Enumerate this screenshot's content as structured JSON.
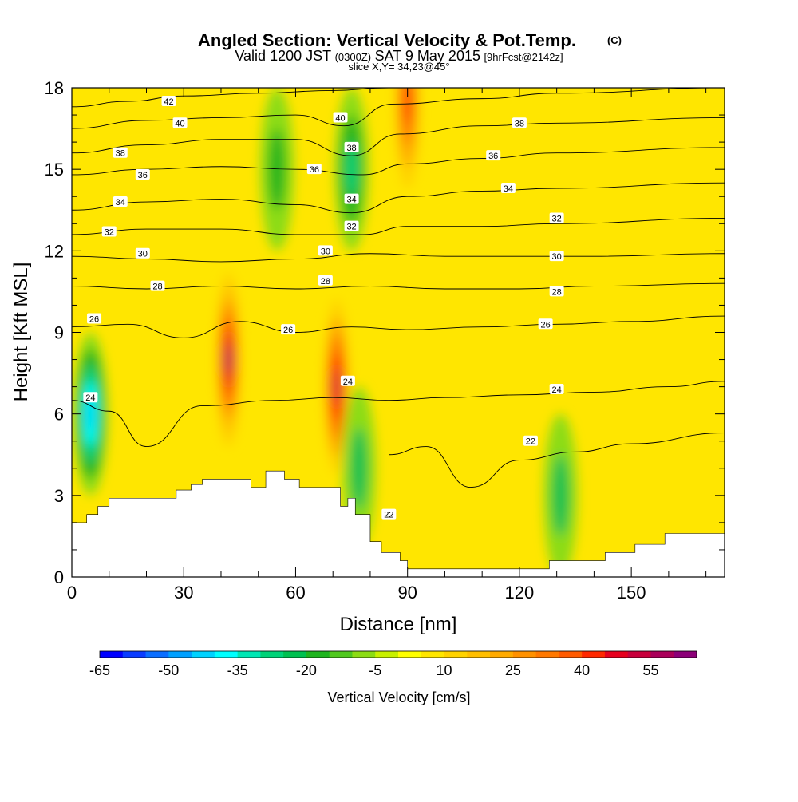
{
  "header": {
    "title": "Angled Section: Vertical Velocity & Pot.Temp.",
    "title_mark": "(C)",
    "valid_prefix": "Valid 1200 JST",
    "valid_zone": "(0300Z)",
    "valid_date": "SAT 9 May 2015",
    "valid_fcst": "[9hrFcst@2142z]",
    "slice": "slice X,Y= 34,23@45°"
  },
  "chart_data": {
    "type": "heatmap",
    "title": "Angled Section: Vertical Velocity & Pot.Temp.",
    "xlabel": "Distance [nm]",
    "ylabel": "Height [Kft MSL]",
    "xlim": [
      0,
      175
    ],
    "ylim": [
      0,
      18
    ],
    "x_ticks": [
      0,
      30,
      60,
      90,
      120,
      150
    ],
    "x_tick_labels": [
      "0",
      "30",
      "60",
      "90",
      "120",
      "150"
    ],
    "y_ticks": [
      0,
      3,
      6,
      9,
      12,
      15,
      18
    ],
    "y_tick_labels": [
      "0",
      "3",
      "6",
      "9",
      "12",
      "15",
      "18"
    ],
    "colorbar": {
      "title": "Vertical Velocity [cm/s]",
      "min": -65,
      "max": 60,
      "step": 5,
      "tick_values": [
        -65,
        -50,
        -35,
        -20,
        -5,
        10,
        25,
        40,
        55
      ],
      "tick_labels": [
        "-65",
        "-50",
        "-35",
        "-20",
        "-5",
        "10",
        "25",
        "40",
        "55"
      ],
      "colors": [
        "#0000ff",
        "#0a3cff",
        "#0a6eff",
        "#00a0ff",
        "#00d2ff",
        "#00ffff",
        "#00e6b4",
        "#00d278",
        "#00c050",
        "#1eb41e",
        "#50c81e",
        "#8cdc14",
        "#c8f000",
        "#ffff00",
        "#ffe600",
        "#ffd200",
        "#ffbe00",
        "#ffaa00",
        "#ff9100",
        "#ff7800",
        "#ff5a00",
        "#ff2800",
        "#e6001e",
        "#c8003c",
        "#aa005a",
        "#8c0078"
      ]
    },
    "field_features": [
      {
        "kind": "updraft",
        "x": 42,
        "y": 8,
        "peak_cm_s": 58
      },
      {
        "kind": "updraft",
        "x": 71,
        "y": 7,
        "peak_cm_s": 52
      },
      {
        "kind": "updraft",
        "x": 90,
        "y": 17.5,
        "peak_cm_s": 40
      },
      {
        "kind": "downdraft",
        "x": 5,
        "y": 6,
        "peak_cm_s": -45
      },
      {
        "kind": "downdraft",
        "x": 75,
        "y": 15,
        "peak_cm_s": -30
      },
      {
        "kind": "downdraft",
        "x": 55,
        "y": 15,
        "peak_cm_s": -20
      },
      {
        "kind": "downdraft",
        "x": 77,
        "y": 4,
        "peak_cm_s": -22
      },
      {
        "kind": "downdraft",
        "x": 131,
        "y": 3,
        "peak_cm_s": -22
      }
    ],
    "theta_contours": [
      {
        "value": 22,
        "label": "22",
        "points": [
          [
            85,
            4.5
          ],
          [
            95,
            4.8
          ],
          [
            107,
            3.3
          ],
          [
            120,
            4.3
          ],
          [
            135,
            4.6
          ],
          [
            150,
            4.9
          ],
          [
            175,
            5.3
          ]
        ]
      },
      {
        "value": 24,
        "label": "24",
        "points": [
          [
            0,
            6.5
          ],
          [
            10,
            6.1
          ],
          [
            20,
            4.8
          ],
          [
            35,
            6.3
          ],
          [
            55,
            6.5
          ],
          [
            70,
            6.6
          ],
          [
            85,
            6.5
          ],
          [
            100,
            6.6
          ],
          [
            120,
            6.7
          ],
          [
            140,
            6.8
          ],
          [
            160,
            7.0
          ],
          [
            175,
            7.2
          ]
        ]
      },
      {
        "value": 26,
        "label": "26",
        "points": [
          [
            0,
            9.2
          ],
          [
            15,
            9.3
          ],
          [
            30,
            8.8
          ],
          [
            45,
            9.4
          ],
          [
            60,
            9.0
          ],
          [
            75,
            9.2
          ],
          [
            90,
            9.1
          ],
          [
            110,
            9.2
          ],
          [
            130,
            9.3
          ],
          [
            150,
            9.4
          ],
          [
            175,
            9.6
          ]
        ]
      },
      {
        "value": 28,
        "label": "28",
        "points": [
          [
            0,
            10.7
          ],
          [
            20,
            10.6
          ],
          [
            40,
            10.7
          ],
          [
            60,
            10.6
          ],
          [
            80,
            10.7
          ],
          [
            100,
            10.6
          ],
          [
            120,
            10.6
          ],
          [
            140,
            10.7
          ],
          [
            175,
            10.8
          ]
        ]
      },
      {
        "value": 30,
        "label": "30",
        "points": [
          [
            0,
            11.8
          ],
          [
            20,
            11.7
          ],
          [
            40,
            11.6
          ],
          [
            60,
            11.7
          ],
          [
            80,
            11.9
          ],
          [
            100,
            11.8
          ],
          [
            120,
            11.8
          ],
          [
            140,
            11.8
          ],
          [
            175,
            11.9
          ]
        ]
      },
      {
        "value": 32,
        "label": "32",
        "points": [
          [
            0,
            12.6
          ],
          [
            20,
            12.8
          ],
          [
            40,
            12.8
          ],
          [
            60,
            12.6
          ],
          [
            78,
            12.6
          ],
          [
            90,
            12.9
          ],
          [
            110,
            12.9
          ],
          [
            130,
            13.0
          ],
          [
            175,
            13.2
          ]
        ]
      },
      {
        "value": 34,
        "label": "34",
        "points": [
          [
            0,
            13.5
          ],
          [
            20,
            13.8
          ],
          [
            40,
            13.9
          ],
          [
            60,
            13.7
          ],
          [
            75,
            13.4
          ],
          [
            90,
            14.0
          ],
          [
            110,
            14.2
          ],
          [
            130,
            14.3
          ],
          [
            175,
            14.5
          ]
        ]
      },
      {
        "value": 36,
        "label": "36",
        "points": [
          [
            0,
            14.8
          ],
          [
            20,
            15.0
          ],
          [
            40,
            15.1
          ],
          [
            60,
            15.0
          ],
          [
            78,
            14.8
          ],
          [
            90,
            15.2
          ],
          [
            110,
            15.4
          ],
          [
            130,
            15.6
          ],
          [
            175,
            15.8
          ]
        ]
      },
      {
        "value": 38,
        "label": "38",
        "points": [
          [
            0,
            15.6
          ],
          [
            20,
            15.9
          ],
          [
            40,
            16.1
          ],
          [
            60,
            16.1
          ],
          [
            75,
            15.5
          ],
          [
            88,
            16.3
          ],
          [
            110,
            16.6
          ],
          [
            130,
            16.7
          ],
          [
            175,
            16.9
          ]
        ]
      },
      {
        "value": 40,
        "label": "40",
        "points": [
          [
            0,
            16.5
          ],
          [
            20,
            16.8
          ],
          [
            40,
            16.9
          ],
          [
            60,
            17.0
          ],
          [
            73,
            16.6
          ],
          [
            86,
            17.4
          ],
          [
            110,
            17.6
          ],
          [
            130,
            17.8
          ],
          [
            175,
            18
          ]
        ]
      },
      {
        "value": 42,
        "label": "42",
        "points": [
          [
            0,
            17.3
          ],
          [
            15,
            17.5
          ],
          [
            30,
            17.7
          ],
          [
            50,
            17.8
          ],
          [
            70,
            17.9
          ],
          [
            85,
            18
          ]
        ]
      }
    ],
    "theta_labels": [
      {
        "text": "42",
        "x": 26,
        "y": 17.5
      },
      {
        "text": "40",
        "x": 29,
        "y": 16.7
      },
      {
        "text": "40",
        "x": 72,
        "y": 16.9
      },
      {
        "text": "38",
        "x": 13,
        "y": 15.6
      },
      {
        "text": "38",
        "x": 75,
        "y": 15.8
      },
      {
        "text": "38",
        "x": 120,
        "y": 16.7
      },
      {
        "text": "36",
        "x": 19,
        "y": 14.8
      },
      {
        "text": "36",
        "x": 65,
        "y": 15.0
      },
      {
        "text": "36",
        "x": 113,
        "y": 15.5
      },
      {
        "text": "34",
        "x": 13,
        "y": 13.8
      },
      {
        "text": "34",
        "x": 75,
        "y": 13.9
      },
      {
        "text": "34",
        "x": 117,
        "y": 14.3
      },
      {
        "text": "32",
        "x": 10,
        "y": 12.7
      },
      {
        "text": "32",
        "x": 75,
        "y": 12.9
      },
      {
        "text": "32",
        "x": 130,
        "y": 13.2
      },
      {
        "text": "30",
        "x": 19,
        "y": 11.9
      },
      {
        "text": "30",
        "x": 68,
        "y": 12.0
      },
      {
        "text": "30",
        "x": 130,
        "y": 11.8
      },
      {
        "text": "28",
        "x": 23,
        "y": 10.7
      },
      {
        "text": "28",
        "x": 68,
        "y": 10.9
      },
      {
        "text": "28",
        "x": 130,
        "y": 10.5
      },
      {
        "text": "26",
        "x": 6,
        "y": 9.5
      },
      {
        "text": "26",
        "x": 58,
        "y": 9.1
      },
      {
        "text": "26",
        "x": 127,
        "y": 9.3
      },
      {
        "text": "24",
        "x": 5,
        "y": 6.6
      },
      {
        "text": "24",
        "x": 74,
        "y": 7.2
      },
      {
        "text": "24",
        "x": 130,
        "y": 6.9
      },
      {
        "text": "22",
        "x": 123,
        "y": 5.0
      },
      {
        "text": "22",
        "x": 85,
        "y": 2.3
      }
    ],
    "terrain": [
      [
        0,
        2.0
      ],
      [
        4,
        2.0
      ],
      [
        4,
        2.3
      ],
      [
        7,
        2.3
      ],
      [
        7,
        2.6
      ],
      [
        10,
        2.6
      ],
      [
        10,
        2.9
      ],
      [
        23,
        2.9
      ],
      [
        28,
        2.9
      ],
      [
        28,
        3.2
      ],
      [
        32,
        3.2
      ],
      [
        32,
        3.4
      ],
      [
        35,
        3.4
      ],
      [
        35,
        3.6
      ],
      [
        48,
        3.6
      ],
      [
        48,
        3.3
      ],
      [
        52,
        3.3
      ],
      [
        52,
        3.9
      ],
      [
        57,
        3.9
      ],
      [
        57,
        3.6
      ],
      [
        61,
        3.6
      ],
      [
        61,
        3.3
      ],
      [
        72,
        3.3
      ],
      [
        72,
        2.6
      ],
      [
        74,
        2.6
      ],
      [
        74,
        2.9
      ],
      [
        76,
        2.9
      ],
      [
        76,
        2.3
      ],
      [
        80,
        2.3
      ],
      [
        80,
        1.3
      ],
      [
        83,
        1.3
      ],
      [
        83,
        0.9
      ],
      [
        88,
        0.9
      ],
      [
        88,
        0.6
      ],
      [
        90,
        0.6
      ],
      [
        90,
        0.3
      ],
      [
        128,
        0.3
      ],
      [
        128,
        0.6
      ],
      [
        143,
        0.6
      ],
      [
        143,
        0.9
      ],
      [
        151,
        0.9
      ],
      [
        151,
        1.2
      ],
      [
        159,
        1.2
      ],
      [
        159,
        1.6
      ],
      [
        175,
        1.6
      ],
      [
        175,
        0
      ],
      [
        0,
        0
      ]
    ],
    "grid": false
  }
}
